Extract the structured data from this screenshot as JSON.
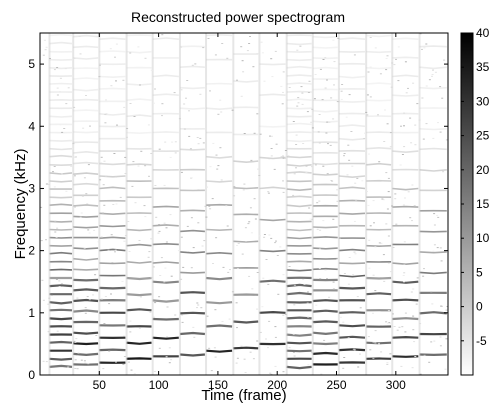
{
  "chart_data": {
    "type": "heatmap",
    "title": "Reconstructed power spectrogram",
    "xlabel": "Time (frame)",
    "ylabel": "Frequency (kHz)",
    "xlim": [
      0,
      344
    ],
    "ylim": [
      0,
      5.5
    ],
    "x_ticks": [
      50,
      100,
      150,
      200,
      250,
      300
    ],
    "y_ticks": [
      0,
      1,
      2,
      3,
      4,
      5
    ],
    "colorbar": {
      "min": -10,
      "max": 40,
      "ticks": [
        -5,
        0,
        5,
        10,
        15,
        20,
        25,
        30,
        35,
        40
      ],
      "colormap": "gray_reversed",
      "low_color": "#ffffff",
      "high_color": "#000000"
    },
    "note_onsets": [
      8,
      28,
      50,
      73,
      95,
      118,
      140,
      163,
      185,
      208,
      230,
      252,
      275,
      297,
      320
    ],
    "harmonic_fundamentals_khz": [
      0.13,
      0.17,
      0.2,
      0.26,
      0.3,
      0.33,
      0.39,
      0.43,
      0.5
    ]
  }
}
